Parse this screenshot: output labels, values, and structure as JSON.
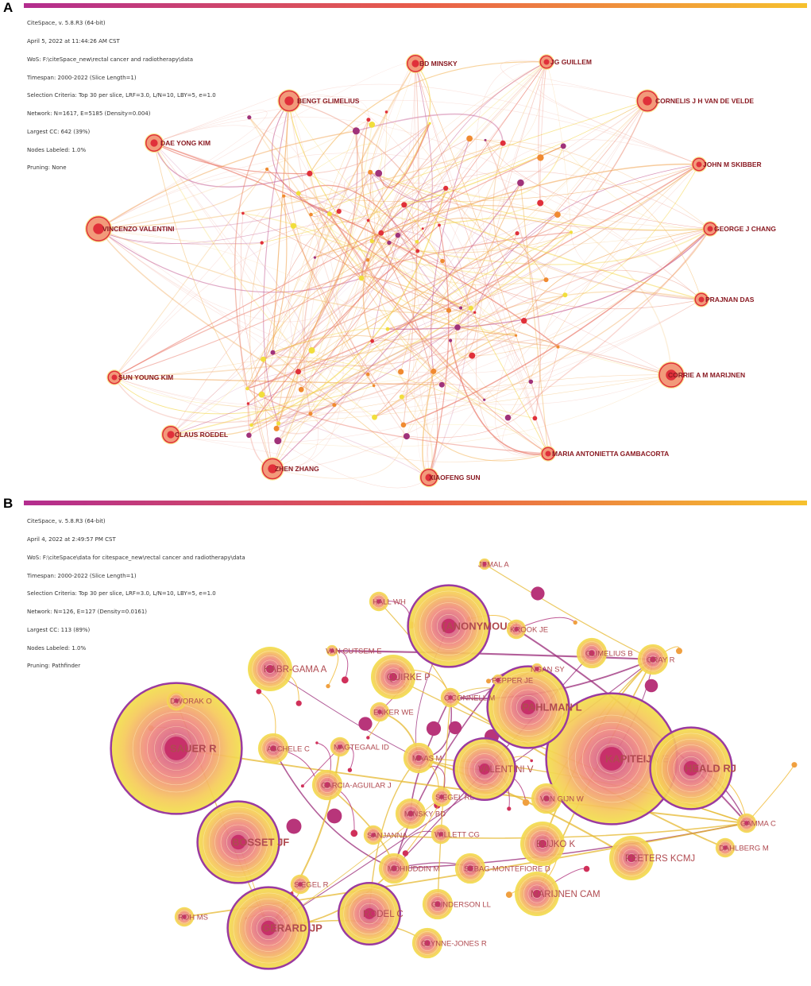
{
  "colors": {
    "timebar_start": "#b32d8f",
    "timebar_mid": "#e85c4a",
    "timebar_end": "#f6c12e",
    "node_red": "#e0303a",
    "node_purple": "#a0327a",
    "node_yellow": "#f1de3c",
    "label_a": "#8a1a22",
    "label_b": "#b04a50"
  },
  "panels": [
    {
      "letter": "A",
      "meta": [
        "CiteSpace, v. 5.8.R3 (64-bit)",
        "April 5, 2022 at 11:44:26 AM CST",
        "WoS: F:\\citeSpace_new\\rectal cancer and radiotherapy\\data",
        "Timespan: 2000-2022 (Slice Length=1)",
        "Selection Criteria: Top 30 per slice, LRF=3.0, L/N=10, LBY=5, e=1.0",
        "Network: N=1617, E=5185 (Density=0.004)",
        "Largest CC: 642 (39%)",
        "Nodes Labeled: 1.0%",
        "Pruning: None"
      ],
      "nodes": [
        {
          "label": "BD MINSKY",
          "size": 3
        },
        {
          "label": "JG GUILLEM",
          "size": 2
        },
        {
          "label": "BENGT GLIMELIUS",
          "size": 4
        },
        {
          "label": "CORNELIS J H VAN DE VELDE",
          "size": 4
        },
        {
          "label": "DAE YONG KIM",
          "size": 3
        },
        {
          "label": "JOHN M SKIBBER",
          "size": 2
        },
        {
          "label": "VINCENZO VALENTINI",
          "size": 5
        },
        {
          "label": "GEORGE J CHANG",
          "size": 2
        },
        {
          "label": "PRAJNAN DAS",
          "size": 2
        },
        {
          "label": "SUN YOUNG KIM",
          "size": 2
        },
        {
          "label": "CORRIE A M MARIJNEN",
          "size": 5
        },
        {
          "label": "CLAUS ROEDEL",
          "size": 3
        },
        {
          "label": "MARIA ANTONIETTA GAMBACORTA",
          "size": 2
        },
        {
          "label": "ZHEN ZHANG",
          "size": 4
        },
        {
          "label": "XIAOFENG SUN",
          "size": 3
        }
      ]
    },
    {
      "letter": "B",
      "meta": [
        "CiteSpace, v. 5.8.R3 (64-bit)",
        "April 4, 2022 at 2:49:57 PM CST",
        "WoS: F:\\citeSpace\\data for citespace_new\\rectal cancer and radiotherapy\\data",
        "Timespan: 2000-2022 (Slice Length=1)",
        "Selection Criteria: Top 30 per slice, LRF=3.0, L/N=10, LBY=5, e=1.0",
        "Network: N=126, E=127 (Density=0.0161)",
        "Largest CC: 113 (89%)",
        "Nodes Labeled: 1.0%",
        "Pruning: Pathfinder"
      ],
      "nodes": [
        {
          "label": "JEMAL A",
          "size": 1
        },
        {
          "label": "HALL WH",
          "size": 2
        },
        {
          "label": "[ANONYMOUS]",
          "size": 6
        },
        {
          "label": "KROOK JE",
          "size": 2
        },
        {
          "label": "GLIMELIUS B",
          "size": 3
        },
        {
          "label": "GRAY R",
          "size": 3
        },
        {
          "label": "VAN CUTSEM E",
          "size": 1
        },
        {
          "label": "NGAN SY",
          "size": 1
        },
        {
          "label": "HABR-GAMA A",
          "size": 4
        },
        {
          "label": "QUIRKE P",
          "size": 4
        },
        {
          "label": "PEPPER JE",
          "size": 1
        },
        {
          "label": "DWORAK O",
          "size": 2
        },
        {
          "label": "O'CONNELL M",
          "size": 2
        },
        {
          "label": "PAHLMAN L",
          "size": 6
        },
        {
          "label": "ENKER WE",
          "size": 2
        },
        {
          "label": "SAUER R",
          "size": 8
        },
        {
          "label": "ASCHELE C",
          "size": 3
        },
        {
          "label": "NAGTEGAAL ID",
          "size": 2
        },
        {
          "label": "KAPITEIJN E",
          "size": 8
        },
        {
          "label": "MAAS M",
          "size": 3
        },
        {
          "label": "VALENTINI V",
          "size": 5
        },
        {
          "label": "HEALD RJ",
          "size": 6
        },
        {
          "label": "GARCIA-AGUILAR J",
          "size": 3
        },
        {
          "label": "SIEGEL RL",
          "size": 2
        },
        {
          "label": "VAN GIJN W",
          "size": 3
        },
        {
          "label": "MINSKY BD",
          "size": 3
        },
        {
          "label": "GAMMA C",
          "size": 2
        },
        {
          "label": "SANJANNA",
          "size": 2
        },
        {
          "label": "WILLETT CG",
          "size": 2
        },
        {
          "label": "BOSSET JF",
          "size": 6
        },
        {
          "label": "BUJKO K",
          "size": 4
        },
        {
          "label": "DAHLBERG M",
          "size": 2
        },
        {
          "label": "PEETERS KCMJ",
          "size": 4
        },
        {
          "label": "MOHIUDDIN M",
          "size": 3
        },
        {
          "label": "SEBAG-MONTEFIORE D",
          "size": 3
        },
        {
          "label": "SIEGEL R",
          "size": 2
        },
        {
          "label": "MARIJNEN CAM",
          "size": 4
        },
        {
          "label": "GUNDERSON LL",
          "size": 3
        },
        {
          "label": "RODEL C",
          "size": 5
        },
        {
          "label": "ROH MS",
          "size": 2
        },
        {
          "label": "GERARD JP",
          "size": 6
        },
        {
          "label": "GLYNNE-JONES R",
          "size": 3
        }
      ]
    }
  ]
}
